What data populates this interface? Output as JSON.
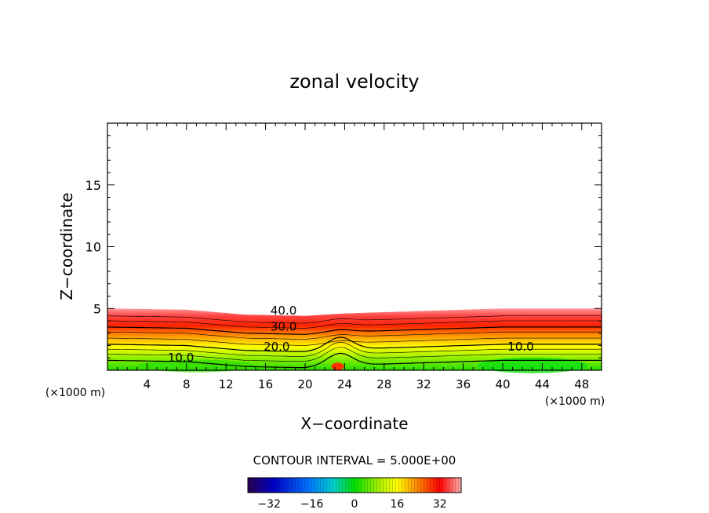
{
  "chart_data": {
    "type": "contour",
    "title": "zonal velocity",
    "xlabel": "X−coordinate",
    "ylabel": "Z−coordinate",
    "x_unit_left": "(×1000 m)",
    "x_unit_right": "(×1000 m)",
    "xlim": [
      0,
      50
    ],
    "ylim": [
      0,
      20
    ],
    "x_ticks": [
      4,
      8,
      12,
      16,
      20,
      24,
      28,
      32,
      36,
      40,
      44,
      48
    ],
    "y_ticks": [
      5,
      10,
      15
    ],
    "contour_labels": [
      {
        "text": "40.0",
        "x": 16.5,
        "y": 4.5
      },
      {
        "text": "30.0",
        "x": 16.5,
        "y": 3.2
      },
      {
        "text": "20.0",
        "x": 15.8,
        "y": 1.6
      },
      {
        "text": "10.0",
        "x": 6.1,
        "y": 0.7
      },
      {
        "text": "10.0",
        "x": 40.5,
        "y": 1.6
      }
    ],
    "contour_interval_text": "CONTOUR INTERVAL = 5.000E+00",
    "colorbar": {
      "range": [
        -40,
        40
      ],
      "ticks": [
        -32,
        -16,
        0,
        16,
        32
      ],
      "tick_labels": [
        "−32",
        "−16",
        "0",
        "16",
        "32"
      ]
    },
    "field_top_profile": [
      [
        0,
        5.0
      ],
      [
        8,
        4.9
      ],
      [
        14,
        4.5
      ],
      [
        20,
        4.4
      ],
      [
        24,
        4.6
      ],
      [
        32,
        4.8
      ],
      [
        40,
        5.0
      ],
      [
        50,
        5.0
      ]
    ],
    "grid": false
  },
  "colors": {
    "low": "#00e000",
    "mid": "#ffff00",
    "high": "#ff0000",
    "top": "#ff9999"
  }
}
